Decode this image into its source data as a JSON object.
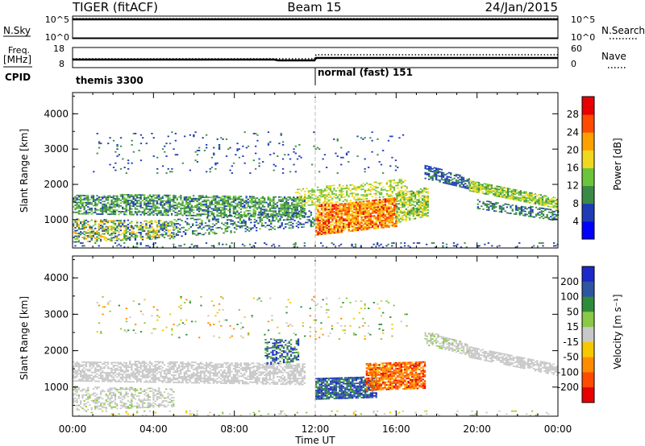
{
  "header": {
    "title": "TIGER (fitACF)",
    "beam": "Beam 15",
    "date": "24/Jan/2015"
  },
  "top_panel": {
    "nsky_label": "N.Sky",
    "nsky_ticks": [
      "10^5",
      "10^0"
    ],
    "nsearch_label": "N.Search",
    "nsearch_ticks": [
      "10^5",
      "10^0"
    ],
    "freq_label": "Freq.",
    "freq_unit": "[MHz]",
    "freq_ticks": [
      "18",
      "8"
    ],
    "nave_label": "Nave",
    "nave_ticks": [
      "60",
      "0"
    ],
    "cpid_label": "CPID",
    "cpid_segments": [
      {
        "name": "themis 3300",
        "start_hour": 0,
        "end_hour": 12
      },
      {
        "name": "normal (fast) 151",
        "start_hour": 12,
        "end_hour": 24
      }
    ]
  },
  "chart_data": [
    {
      "type": "heatmap",
      "name": "power",
      "ylabel": "Slant Range [km]",
      "yticks": [
        1000,
        2000,
        3000,
        4000
      ],
      "ylim": [
        200,
        4600
      ],
      "xlim": [
        0,
        24
      ],
      "colorbar_label": "Power [dB]",
      "colorbar_ticks": [
        "28",
        "24",
        "20",
        "16",
        "12",
        "8",
        "4"
      ],
      "colorbar_range": [
        0,
        32
      ],
      "colormap": [
        "#0000ff",
        "#1e3cb4",
        "#3a8a46",
        "#6cc43a",
        "#f0d820",
        "#ffa000",
        "#ff4a00",
        "#e60000"
      ],
      "bands": [
        {
          "start": 0.0,
          "end": 11.5,
          "r1": 1150,
          "r2": 1700,
          "r1e": 1050,
          "r2e": 1650,
          "vmin": 6,
          "vmax": 15,
          "density": 0.65
        },
        {
          "start": 0.0,
          "end": 5.0,
          "r1": 350,
          "r2": 1000,
          "r1e": 450,
          "r2e": 950,
          "vmin": 4,
          "vmax": 22,
          "density": 0.55
        },
        {
          "start": 5.0,
          "end": 12.0,
          "r1": 500,
          "r2": 1000,
          "r1e": 800,
          "r2e": 1250,
          "vmin": 4,
          "vmax": 14,
          "density": 0.35
        },
        {
          "start": 12.0,
          "end": 16.0,
          "r1": 550,
          "r2": 1400,
          "r1e": 800,
          "r2e": 1600,
          "vmin": 16,
          "vmax": 30,
          "density": 0.85
        },
        {
          "start": 16.0,
          "end": 17.6,
          "r1": 900,
          "r2": 1750,
          "r1e": 1100,
          "r2e": 1900,
          "vmin": 10,
          "vmax": 20,
          "density": 0.7
        },
        {
          "start": 11.0,
          "end": 16.5,
          "r1": 1350,
          "r2": 1850,
          "r1e": 1700,
          "r2e": 2150,
          "vmin": 12,
          "vmax": 20,
          "density": 0.45
        },
        {
          "start": 17.4,
          "end": 19.6,
          "r1": 2150,
          "r2": 2550,
          "r1e": 1850,
          "r2e": 2150,
          "vmin": 5,
          "vmax": 10,
          "density": 0.65
        },
        {
          "start": 19.6,
          "end": 24.0,
          "r1": 1800,
          "r2": 2100,
          "r1e": 1300,
          "r2e": 1600,
          "vmin": 10,
          "vmax": 20,
          "density": 0.8
        },
        {
          "start": 20.0,
          "end": 24.0,
          "r1": 1300,
          "r2": 1550,
          "r1e": 950,
          "r2e": 1250,
          "vmin": 6,
          "vmax": 12,
          "density": 0.5
        },
        {
          "start": 1.0,
          "end": 16.5,
          "r1": 2300,
          "r2": 3500,
          "r1e": 2300,
          "r2e": 3500,
          "vmin": 4,
          "vmax": 10,
          "density": 0.04
        },
        {
          "start": 0.0,
          "end": 24.0,
          "r1": 200,
          "r2": 340,
          "r1e": 200,
          "r2e": 340,
          "vmin": 4,
          "vmax": 10,
          "density": 0.12
        }
      ]
    },
    {
      "type": "heatmap",
      "name": "velocity",
      "ylabel": "Slant Range [km]",
      "yticks": [
        1000,
        2000,
        3000,
        4000
      ],
      "ylim": [
        200,
        4600
      ],
      "xlim": [
        0,
        24
      ],
      "xticks": [
        "00:00",
        "04:00",
        "08:00",
        "12:00",
        "16:00",
        "20:00",
        "00:00"
      ],
      "xlabel": "Time UT",
      "colorbar_label": "Velocity [m s⁻¹]",
      "colorbar_ticks": [
        "200",
        "100",
        "50",
        "15",
        "-15",
        "-50",
        "-100",
        "-200"
      ],
      "colormap": [
        "#1c28c8",
        "#2d55a0",
        "#2e8b3a",
        "#8ac848",
        "#c8c8c8",
        "#f5c800",
        "#ff8c00",
        "#ff4a00",
        "#e60000"
      ],
      "bands": [
        {
          "start": 0.0,
          "end": 11.5,
          "r1": 1150,
          "r2": 1700,
          "r1e": 1050,
          "r2e": 1650,
          "vmin": -15,
          "vmax": 15,
          "density": 0.65
        },
        {
          "start": 0.0,
          "end": 5.0,
          "r1": 350,
          "r2": 1000,
          "r1e": 450,
          "r2e": 950,
          "vmin": -20,
          "vmax": 40,
          "density": 0.45
        },
        {
          "start": 12.0,
          "end": 15.0,
          "r1": 650,
          "r2": 1250,
          "r1e": 700,
          "r2e": 1250,
          "vmin": 80,
          "vmax": 260,
          "density": 0.85
        },
        {
          "start": 14.5,
          "end": 17.4,
          "r1": 900,
          "r2": 1650,
          "r1e": 950,
          "r2e": 1700,
          "vmin": -220,
          "vmax": -60,
          "density": 0.85
        },
        {
          "start": 9.5,
          "end": 11.2,
          "r1": 1600,
          "r2": 2300,
          "r1e": 1700,
          "r2e": 2300,
          "vmin": 60,
          "vmax": 260,
          "density": 0.5
        },
        {
          "start": 17.4,
          "end": 19.6,
          "r1": 2150,
          "r2": 2550,
          "r1e": 1850,
          "r2e": 2150,
          "vmin": -15,
          "vmax": 40,
          "density": 0.6
        },
        {
          "start": 19.6,
          "end": 24.0,
          "r1": 1800,
          "r2": 2100,
          "r1e": 1300,
          "r2e": 1600,
          "vmin": -15,
          "vmax": 15,
          "density": 0.7
        },
        {
          "start": 1.0,
          "end": 16.5,
          "r1": 2300,
          "r2": 3500,
          "r1e": 2300,
          "r2e": 3500,
          "vmin": -120,
          "vmax": 120,
          "density": 0.04
        },
        {
          "start": 0.0,
          "end": 24.0,
          "r1": 200,
          "r2": 340,
          "r1e": 200,
          "r2e": 340,
          "vmin": -60,
          "vmax": 60,
          "density": 0.1
        }
      ]
    }
  ]
}
